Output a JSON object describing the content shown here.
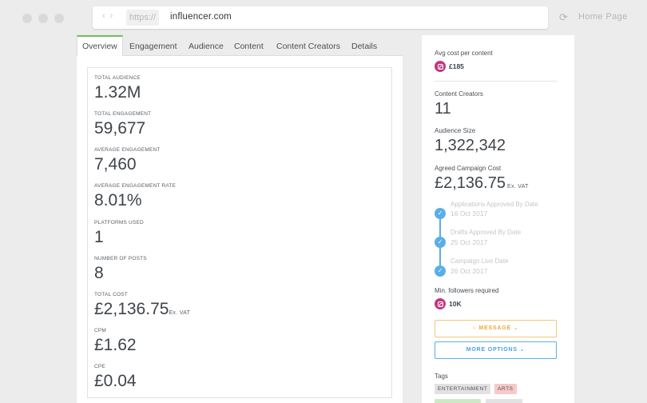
{
  "browser": {
    "protocol": "https://",
    "url": "influencer.com",
    "home_label": "Home Page"
  },
  "tabs": [
    {
      "label": "Overview",
      "active": true
    },
    {
      "label": "Engagement"
    },
    {
      "label": "Audience"
    },
    {
      "label": "Content"
    },
    {
      "label": "Content Creators"
    },
    {
      "label": "Details"
    }
  ],
  "stats": [
    {
      "label": "TOTAL AUDIENCE",
      "value": "1.32M"
    },
    {
      "label": "TOTAL ENGAGEMENT",
      "value": "59,677"
    },
    {
      "label": "AVERAGE ENGAGEMENT",
      "value": "7,460"
    },
    {
      "label": "AVERAGE ENGAGEMENT RATE",
      "value": "8.01%"
    },
    {
      "label": "PLATFORMS USED",
      "value": "1"
    },
    {
      "label": "NUMBER OF POSTS",
      "value": "8"
    },
    {
      "label": "TOTAL COST",
      "value": "£2,136.75",
      "suffix": "Ex. VAT"
    },
    {
      "label": "CPM",
      "value": "£1.62"
    },
    {
      "label": "CPE",
      "value": "£0.04"
    }
  ],
  "sidebar": {
    "avg_cost_label": "Avg cost per content",
    "avg_cost_value": "£185",
    "creators_label": "Content Creators",
    "creators_value": "11",
    "audience_label": "Audience Size",
    "audience_value": "1,322,342",
    "campaign_cost_label": "Agreed Campaign Cost",
    "campaign_cost_value": "£2,136.75",
    "campaign_cost_suffix": "Ex. VAT",
    "timeline": [
      {
        "title": "Applications Approved By Date",
        "date": "16 Oct 2017"
      },
      {
        "title": "Drafts Approved By Date",
        "date": "25 Oct 2017"
      },
      {
        "title": "Campaign Live Date",
        "date": "26 Oct 2017"
      }
    ],
    "min_followers_label": "Min. followers required",
    "min_followers_value": "10K",
    "message_label": "MESSAGE",
    "more_options_label": "MORE OPTIONS",
    "tags_label": "Tags",
    "tags": [
      {
        "label": "ENTERTAINMENT",
        "color": "#e2e2e2"
      },
      {
        "label": "ARTS",
        "color": "#f7c9c9"
      }
    ]
  },
  "colors": {
    "instagram": "#c1367e",
    "active_tab": "#6cbf5a",
    "timeline": "#5aaee8",
    "message": "#eda93c",
    "more_options": "#4aa0e0"
  }
}
